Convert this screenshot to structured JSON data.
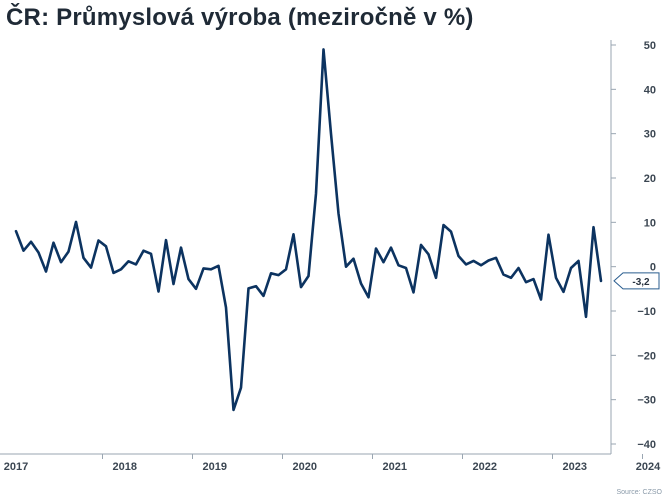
{
  "title": "ČR: Průmyslová výroba (meziročně v %)",
  "source": "Source: CZSO",
  "colors": {
    "line": "#0c3360",
    "axis": "#9aa6b2",
    "callout_border": "#2a5d8f"
  },
  "chart_data": {
    "type": "line",
    "title": "ČR: Průmyslová výroba (meziročně v %)",
    "xlabel": "",
    "ylabel": "",
    "ylim": [
      -40,
      50
    ],
    "yticks": [
      50,
      40,
      30,
      20,
      10,
      0,
      -10,
      -20,
      -30,
      -40
    ],
    "ytick_labels": [
      "50",
      "40",
      "30",
      "20",
      "10",
      "0",
      "−10",
      "−20",
      "−30",
      "−40"
    ],
    "x_start": "2017-01",
    "xticks": [
      "2017",
      "2018",
      "2019",
      "2020",
      "2021",
      "2022",
      "2023",
      "2024"
    ],
    "grid": false,
    "y_axis_side": "right",
    "last_value_label": "-3,2",
    "series": [
      {
        "values": [
          8.0,
          3.6,
          5.6,
          3.2,
          -1.1,
          5.4,
          1.0,
          3.4,
          10.1,
          2.0,
          -0.2,
          5.9,
          4.6,
          -1.4,
          -0.6,
          1.2,
          0.5,
          3.6,
          2.9,
          -5.6,
          6.0,
          -3.9,
          4.3,
          -2.8,
          -5.0,
          -0.4,
          -0.6,
          0.2,
          -9.2,
          -32.3,
          -27.3,
          -4.9,
          -4.4,
          -6.6,
          -1.5,
          -1.9,
          -0.6,
          7.3,
          -4.6,
          -2.1,
          16.5,
          49.0,
          30.0,
          12.0,
          0.0,
          1.8,
          -3.8,
          -6.9,
          4.1,
          1.0,
          4.3,
          0.3,
          -0.3,
          -5.8,
          4.9,
          2.8,
          -2.5,
          9.4,
          7.9,
          2.4,
          0.5,
          1.3,
          0.3,
          1.4,
          2.0,
          -1.8,
          -2.5,
          -0.3,
          -3.5,
          -2.8,
          -7.4,
          7.2,
          -2.5,
          -5.7,
          -0.3,
          1.3,
          -11.3,
          8.9,
          -3.2
        ]
      }
    ]
  }
}
